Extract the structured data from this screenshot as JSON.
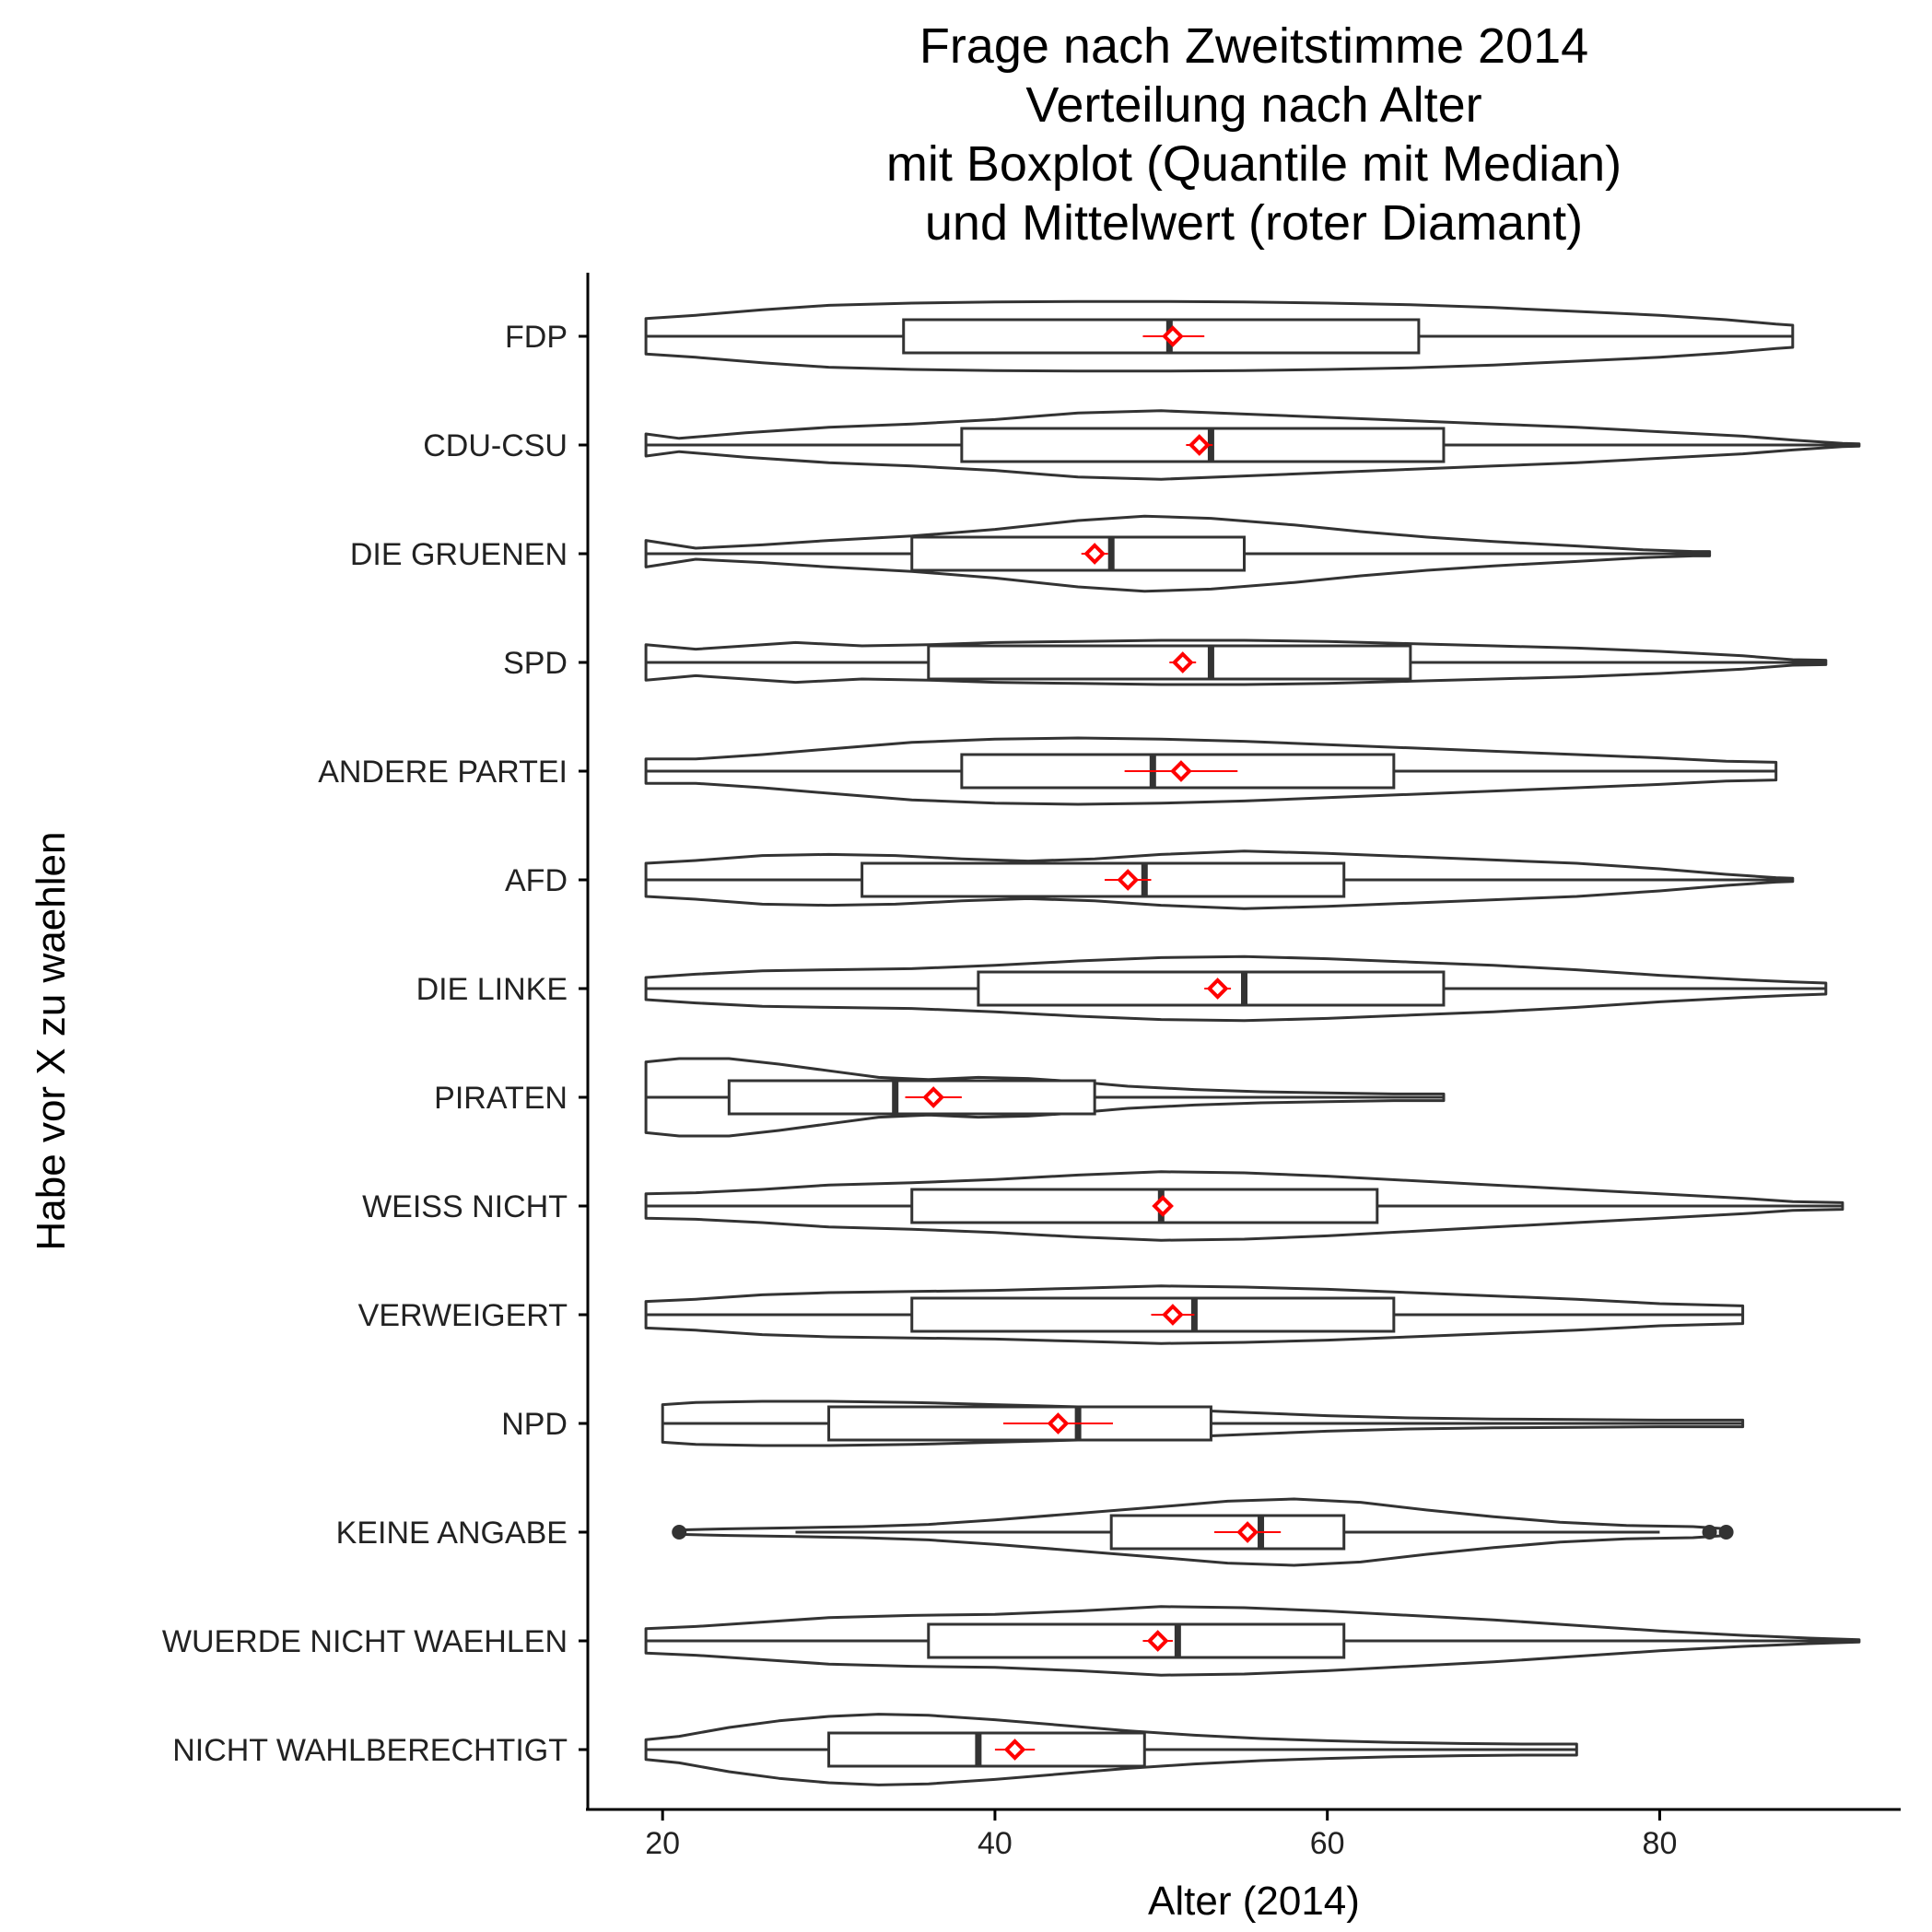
{
  "colors": {
    "background": "#ffffff",
    "outline": "#333333",
    "axis": "#000000",
    "mean_marker": "#ff0000"
  },
  "chart_data": {
    "type": "violin",
    "title_lines": [
      "Frage nach Zweitstimme 2014",
      "Verteilung nach Alter",
      "mit Boxplot (Quantile mit Median)",
      "und Mittelwert (roter Diamant)"
    ],
    "xlabel": "Alter (2014)",
    "ylabel": "Habe vor X zu waehlen",
    "xlim": [
      15.5,
      94.5
    ],
    "xticks": [
      20,
      40,
      60,
      80
    ],
    "grid": false,
    "legend": "none",
    "categories": [
      "FDP",
      "CDU-CSU",
      "DIE GRUENEN",
      "SPD",
      "ANDERE PARTEI",
      "AFD",
      "DIE LINKE",
      "PIRATEN",
      "WEISS NICHT",
      "VERWEIGERT",
      "NPD",
      "KEINE ANGABE",
      "WUERDE NICHT WAEHLEN",
      "NICHT WAHLBERECHTIGT"
    ],
    "groups": [
      {
        "name": "FDP",
        "min": 19,
        "max": 88,
        "density": [
          [
            19,
            0.32
          ],
          [
            22,
            0.38
          ],
          [
            26,
            0.48
          ],
          [
            30,
            0.56
          ],
          [
            35,
            0.6
          ],
          [
            40,
            0.62
          ],
          [
            45,
            0.63
          ],
          [
            50,
            0.63
          ],
          [
            55,
            0.62
          ],
          [
            60,
            0.6
          ],
          [
            65,
            0.57
          ],
          [
            70,
            0.52
          ],
          [
            75,
            0.45
          ],
          [
            80,
            0.38
          ],
          [
            84,
            0.3
          ],
          [
            87,
            0.22
          ],
          [
            88,
            0.2
          ]
        ],
        "box": {
          "q1": 34.5,
          "median": 50.5,
          "q3": 65.5,
          "whisker_low": 19,
          "whisker_high": 88
        },
        "mean": 50.7,
        "ci": [
          48.9,
          52.6
        ],
        "outliers": []
      },
      {
        "name": "CDU-CSU",
        "min": 19,
        "max": 92,
        "density": [
          [
            19,
            0.2
          ],
          [
            21,
            0.12
          ],
          [
            25,
            0.22
          ],
          [
            30,
            0.32
          ],
          [
            35,
            0.38
          ],
          [
            40,
            0.46
          ],
          [
            45,
            0.58
          ],
          [
            50,
            0.62
          ],
          [
            55,
            0.56
          ],
          [
            60,
            0.5
          ],
          [
            65,
            0.44
          ],
          [
            70,
            0.38
          ],
          [
            75,
            0.32
          ],
          [
            80,
            0.24
          ],
          [
            85,
            0.16
          ],
          [
            88,
            0.09
          ],
          [
            91,
            0.03
          ],
          [
            92,
            0.02
          ]
        ],
        "box": {
          "q1": 38,
          "median": 53,
          "q3": 67,
          "whisker_low": 19,
          "whisker_high": 92
        },
        "mean": 52.3,
        "ci": [
          51.5,
          53.1
        ],
        "outliers": []
      },
      {
        "name": "DIE GRUENEN",
        "min": 19,
        "max": 83,
        "density": [
          [
            19,
            0.24
          ],
          [
            22,
            0.1
          ],
          [
            26,
            0.16
          ],
          [
            30,
            0.24
          ],
          [
            35,
            0.32
          ],
          [
            40,
            0.44
          ],
          [
            45,
            0.6
          ],
          [
            49,
            0.68
          ],
          [
            53,
            0.64
          ],
          [
            58,
            0.52
          ],
          [
            62,
            0.4
          ],
          [
            66,
            0.3
          ],
          [
            70,
            0.22
          ],
          [
            75,
            0.14
          ],
          [
            79,
            0.07
          ],
          [
            82,
            0.04
          ],
          [
            83,
            0.04
          ]
        ],
        "box": {
          "q1": 35,
          "median": 47,
          "q3": 55,
          "whisker_low": 19,
          "whisker_high": 83
        },
        "mean": 46.0,
        "ci": [
          45.2,
          46.8
        ],
        "outliers": []
      },
      {
        "name": "SPD",
        "min": 19,
        "max": 90,
        "density": [
          [
            19,
            0.32
          ],
          [
            22,
            0.24
          ],
          [
            25,
            0.3
          ],
          [
            28,
            0.36
          ],
          [
            32,
            0.3
          ],
          [
            36,
            0.32
          ],
          [
            40,
            0.36
          ],
          [
            45,
            0.38
          ],
          [
            50,
            0.4
          ],
          [
            55,
            0.4
          ],
          [
            60,
            0.38
          ],
          [
            65,
            0.34
          ],
          [
            70,
            0.3
          ],
          [
            75,
            0.26
          ],
          [
            80,
            0.2
          ],
          [
            85,
            0.12
          ],
          [
            88,
            0.05
          ],
          [
            90,
            0.04
          ]
        ],
        "box": {
          "q1": 36,
          "median": 53,
          "q3": 65,
          "whisker_low": 19,
          "whisker_high": 90
        },
        "mean": 51.3,
        "ci": [
          50.5,
          52.1
        ],
        "outliers": []
      },
      {
        "name": "ANDERE PARTEI",
        "min": 19,
        "max": 87,
        "density": [
          [
            19,
            0.22
          ],
          [
            22,
            0.22
          ],
          [
            26,
            0.3
          ],
          [
            30,
            0.4
          ],
          [
            35,
            0.52
          ],
          [
            40,
            0.58
          ],
          [
            45,
            0.6
          ],
          [
            50,
            0.58
          ],
          [
            55,
            0.54
          ],
          [
            60,
            0.48
          ],
          [
            65,
            0.42
          ],
          [
            70,
            0.36
          ],
          [
            75,
            0.3
          ],
          [
            80,
            0.24
          ],
          [
            84,
            0.18
          ],
          [
            87,
            0.16
          ]
        ],
        "box": {
          "q1": 38,
          "median": 49.5,
          "q3": 64,
          "whisker_low": 19,
          "whisker_high": 87
        },
        "mean": 51.2,
        "ci": [
          47.8,
          54.6
        ],
        "outliers": []
      },
      {
        "name": "AFD",
        "min": 19,
        "max": 88,
        "density": [
          [
            19,
            0.3
          ],
          [
            22,
            0.35
          ],
          [
            26,
            0.44
          ],
          [
            30,
            0.46
          ],
          [
            34,
            0.44
          ],
          [
            38,
            0.38
          ],
          [
            42,
            0.34
          ],
          [
            46,
            0.38
          ],
          [
            50,
            0.46
          ],
          [
            55,
            0.52
          ],
          [
            60,
            0.48
          ],
          [
            65,
            0.42
          ],
          [
            70,
            0.36
          ],
          [
            75,
            0.3
          ],
          [
            80,
            0.2
          ],
          [
            84,
            0.1
          ],
          [
            87,
            0.04
          ],
          [
            88,
            0.03
          ]
        ],
        "box": {
          "q1": 32,
          "median": 49,
          "q3": 61,
          "whisker_low": 19,
          "whisker_high": 88
        },
        "mean": 48.0,
        "ci": [
          46.6,
          49.4
        ],
        "outliers": []
      },
      {
        "name": "DIE LINKE",
        "min": 19,
        "max": 90,
        "density": [
          [
            19,
            0.2
          ],
          [
            22,
            0.26
          ],
          [
            26,
            0.32
          ],
          [
            30,
            0.34
          ],
          [
            35,
            0.36
          ],
          [
            40,
            0.42
          ],
          [
            45,
            0.5
          ],
          [
            50,
            0.56
          ],
          [
            55,
            0.58
          ],
          [
            60,
            0.54
          ],
          [
            65,
            0.48
          ],
          [
            70,
            0.42
          ],
          [
            75,
            0.34
          ],
          [
            80,
            0.24
          ],
          [
            85,
            0.16
          ],
          [
            88,
            0.12
          ],
          [
            90,
            0.1
          ]
        ],
        "box": {
          "q1": 39,
          "median": 55,
          "q3": 67,
          "whisker_low": 19,
          "whisker_high": 90
        },
        "mean": 53.4,
        "ci": [
          52.6,
          54.2
        ],
        "outliers": []
      },
      {
        "name": "PIRATEN",
        "min": 19,
        "max": 67,
        "density": [
          [
            19,
            0.64
          ],
          [
            21,
            0.7
          ],
          [
            24,
            0.7
          ],
          [
            27,
            0.6
          ],
          [
            30,
            0.48
          ],
          [
            33,
            0.36
          ],
          [
            36,
            0.32
          ],
          [
            39,
            0.36
          ],
          [
            42,
            0.34
          ],
          [
            45,
            0.28
          ],
          [
            48,
            0.2
          ],
          [
            52,
            0.14
          ],
          [
            56,
            0.1
          ],
          [
            60,
            0.08
          ],
          [
            64,
            0.06
          ],
          [
            67,
            0.06
          ]
        ],
        "box": {
          "q1": 24,
          "median": 34,
          "q3": 46,
          "whisker_low": 19,
          "whisker_high": 67
        },
        "mean": 36.3,
        "ci": [
          34.6,
          38.0
        ],
        "outliers": []
      },
      {
        "name": "WEISS NICHT",
        "min": 19,
        "max": 91,
        "density": [
          [
            19,
            0.22
          ],
          [
            22,
            0.24
          ],
          [
            26,
            0.3
          ],
          [
            30,
            0.38
          ],
          [
            35,
            0.42
          ],
          [
            40,
            0.48
          ],
          [
            45,
            0.56
          ],
          [
            50,
            0.62
          ],
          [
            55,
            0.6
          ],
          [
            60,
            0.54
          ],
          [
            65,
            0.46
          ],
          [
            70,
            0.38
          ],
          [
            75,
            0.3
          ],
          [
            80,
            0.22
          ],
          [
            85,
            0.14
          ],
          [
            88,
            0.08
          ],
          [
            91,
            0.06
          ]
        ],
        "box": {
          "q1": 35,
          "median": 50,
          "q3": 63,
          "whisker_low": 19,
          "whisker_high": 91
        },
        "mean": 50.1,
        "ci": [
          49.5,
          50.7
        ],
        "outliers": []
      },
      {
        "name": "VERWEIGERT",
        "min": 19,
        "max": 85,
        "density": [
          [
            19,
            0.24
          ],
          [
            22,
            0.28
          ],
          [
            26,
            0.36
          ],
          [
            30,
            0.4
          ],
          [
            35,
            0.42
          ],
          [
            40,
            0.44
          ],
          [
            45,
            0.48
          ],
          [
            50,
            0.52
          ],
          [
            55,
            0.5
          ],
          [
            60,
            0.46
          ],
          [
            65,
            0.4
          ],
          [
            70,
            0.34
          ],
          [
            75,
            0.28
          ],
          [
            80,
            0.2
          ],
          [
            85,
            0.16
          ]
        ],
        "box": {
          "q1": 35,
          "median": 52,
          "q3": 64,
          "whisker_low": 19,
          "whisker_high": 85
        },
        "mean": 50.7,
        "ci": [
          49.4,
          52.0
        ],
        "outliers": []
      },
      {
        "name": "NPD",
        "min": 20,
        "max": 85,
        "density": [
          [
            20,
            0.34
          ],
          [
            22,
            0.38
          ],
          [
            26,
            0.4
          ],
          [
            30,
            0.4
          ],
          [
            35,
            0.38
          ],
          [
            40,
            0.34
          ],
          [
            45,
            0.3
          ],
          [
            50,
            0.26
          ],
          [
            55,
            0.2
          ],
          [
            60,
            0.14
          ],
          [
            65,
            0.1
          ],
          [
            70,
            0.08
          ],
          [
            75,
            0.07
          ],
          [
            80,
            0.06
          ],
          [
            85,
            0.06
          ]
        ],
        "box": {
          "q1": 30,
          "median": 45,
          "q3": 53,
          "whisker_low": 20,
          "whisker_high": 85
        },
        "mean": 43.8,
        "ci": [
          40.5,
          47.1
        ],
        "outliers": []
      },
      {
        "name": "KEINE ANGABE",
        "min": 21,
        "max": 84,
        "density": [
          [
            21,
            0.04
          ],
          [
            24,
            0.06
          ],
          [
            28,
            0.08
          ],
          [
            32,
            0.1
          ],
          [
            36,
            0.14
          ],
          [
            40,
            0.22
          ],
          [
            45,
            0.34
          ],
          [
            50,
            0.46
          ],
          [
            54,
            0.56
          ],
          [
            58,
            0.6
          ],
          [
            62,
            0.54
          ],
          [
            66,
            0.4
          ],
          [
            70,
            0.28
          ],
          [
            74,
            0.18
          ],
          [
            78,
            0.12
          ],
          [
            82,
            0.1
          ],
          [
            84,
            0.06
          ]
        ],
        "box": {
          "q1": 47,
          "median": 56,
          "q3": 61,
          "whisker_low": 28,
          "whisker_high": 80
        },
        "mean": 55.2,
        "ci": [
          53.2,
          57.2
        ],
        "outliers": [
          21,
          83,
          84
        ]
      },
      {
        "name": "WUERDE NICHT WAEHLEN",
        "min": 19,
        "max": 92,
        "density": [
          [
            19,
            0.22
          ],
          [
            22,
            0.26
          ],
          [
            26,
            0.34
          ],
          [
            30,
            0.42
          ],
          [
            35,
            0.46
          ],
          [
            40,
            0.48
          ],
          [
            45,
            0.54
          ],
          [
            50,
            0.62
          ],
          [
            55,
            0.6
          ],
          [
            60,
            0.54
          ],
          [
            65,
            0.46
          ],
          [
            70,
            0.38
          ],
          [
            75,
            0.28
          ],
          [
            80,
            0.18
          ],
          [
            85,
            0.1
          ],
          [
            89,
            0.05
          ],
          [
            92,
            0.02
          ]
        ],
        "box": {
          "q1": 36,
          "median": 51,
          "q3": 61,
          "whisker_low": 19,
          "whisker_high": 92
        },
        "mean": 49.8,
        "ci": [
          48.9,
          50.7
        ],
        "outliers": []
      },
      {
        "name": "NICHT WAHLBERECHTIGT",
        "min": 19,
        "max": 75,
        "density": [
          [
            19,
            0.18
          ],
          [
            21,
            0.24
          ],
          [
            24,
            0.4
          ],
          [
            27,
            0.52
          ],
          [
            30,
            0.6
          ],
          [
            33,
            0.64
          ],
          [
            36,
            0.62
          ],
          [
            40,
            0.54
          ],
          [
            44,
            0.44
          ],
          [
            48,
            0.34
          ],
          [
            52,
            0.26
          ],
          [
            56,
            0.2
          ],
          [
            60,
            0.16
          ],
          [
            64,
            0.13
          ],
          [
            68,
            0.11
          ],
          [
            72,
            0.1
          ],
          [
            75,
            0.1
          ]
        ],
        "box": {
          "q1": 30,
          "median": 39,
          "q3": 49,
          "whisker_low": 19,
          "whisker_high": 75
        },
        "mean": 41.2,
        "ci": [
          40.0,
          42.4
        ],
        "outliers": []
      }
    ]
  }
}
